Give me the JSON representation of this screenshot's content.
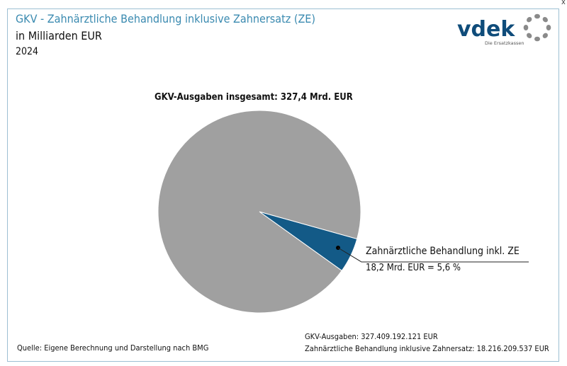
{
  "header": {
    "title": "GKV - Zahnärztliche Behandlung inklusive Zahnersatz (ZE)",
    "subtitle": "in Milliarden EUR",
    "year": "2024"
  },
  "logo": {
    "text": "vdek",
    "tagline": "Die Ersatzkassen",
    "color": "#0f4c7a"
  },
  "chart_data": {
    "type": "pie",
    "title": "GKV-Ausgaben insgesamt: 327,4 Mrd. EUR",
    "total": 327.4,
    "slices": [
      {
        "name": "Zahnärztliche Behandlung inkl. ZE",
        "value": 18.2,
        "percent": 5.6,
        "color": "#135a87",
        "label": "18,2 Mrd. EUR = 5,6 %"
      },
      {
        "name": "",
        "value": 309.2,
        "percent": 94.4,
        "color": "#a0a0a0"
      }
    ]
  },
  "footer": {
    "source": "Quelle: Eigene Berechnung und Darstellung nach BMG",
    "note1": "GKV-Ausgaben: 327.409.192.121  EUR",
    "note2": "Zahnärztliche Behandlung inklusive Zahnersatz: 18.216.209.537  EUR"
  },
  "close_label": "x"
}
